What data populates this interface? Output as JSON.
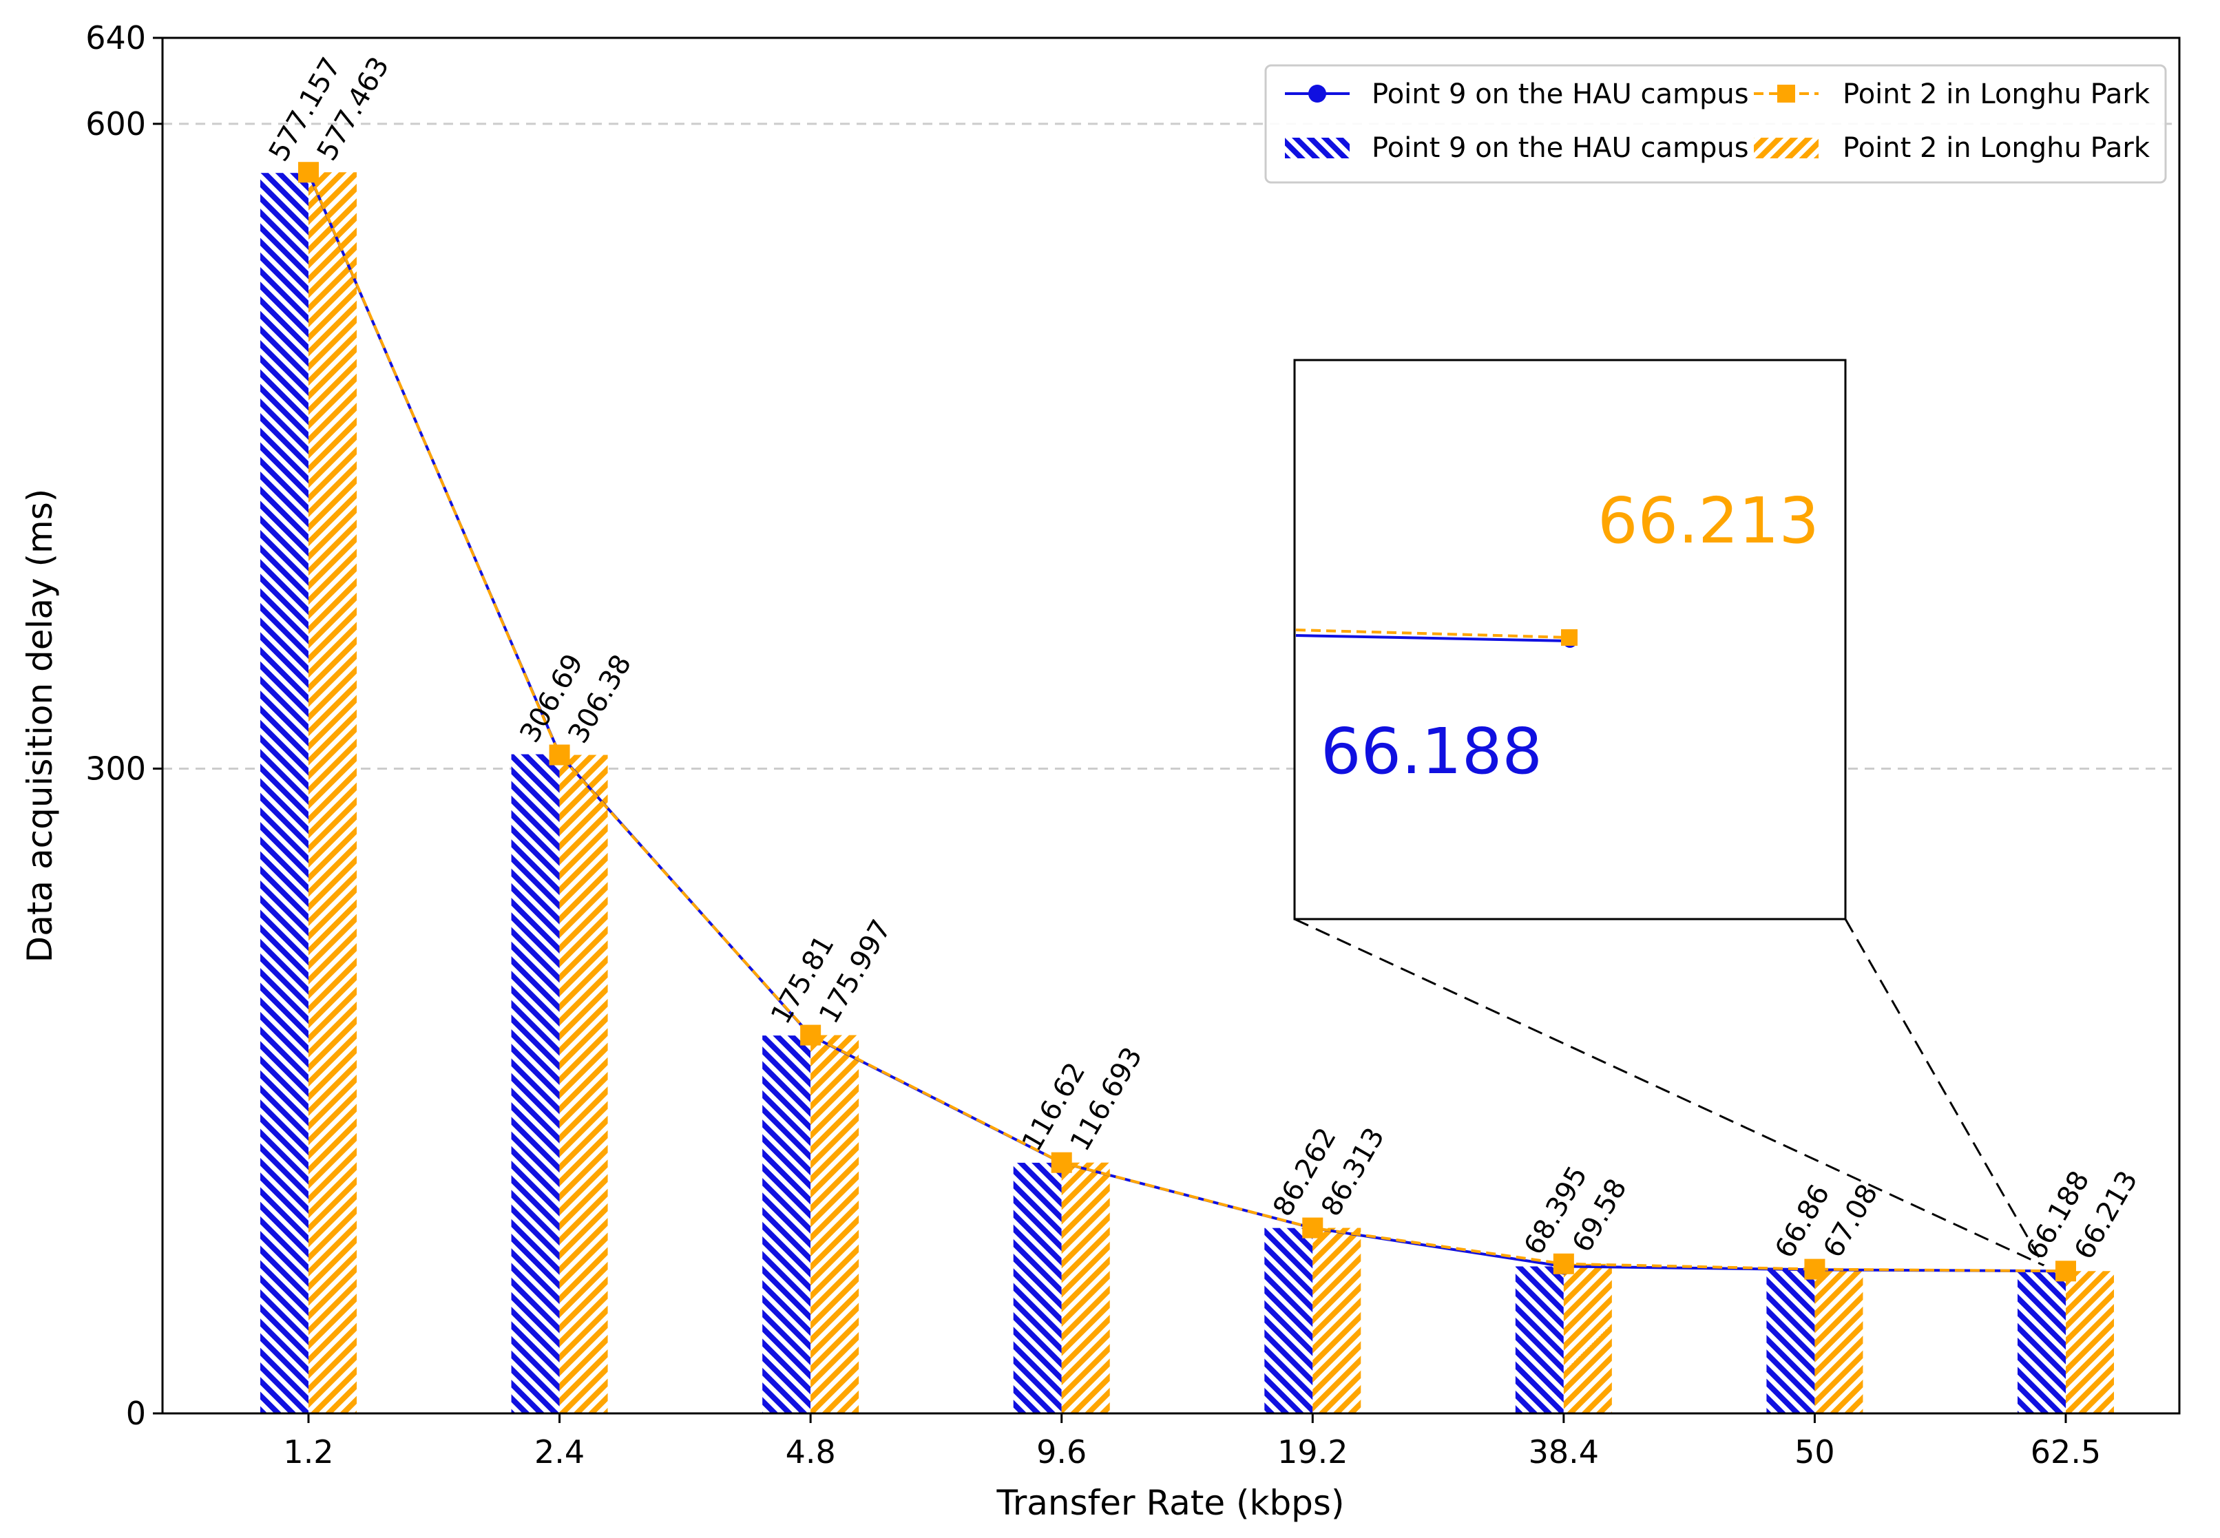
{
  "chart_data": {
    "type": "bar+line",
    "title": "",
    "xlabel": "Transfer Rate (kbps)",
    "ylabel": "Data acquisition delay (ms)",
    "ylim": [
      0,
      640
    ],
    "yticks": [
      0,
      300,
      600,
      640
    ],
    "grid": "horizontal dashed at 300 and 600",
    "categories": [
      "1.2",
      "2.4",
      "4.8",
      "9.6",
      "19.2",
      "38.4",
      "50",
      "62.5"
    ],
    "series": [
      {
        "name": "Point 9 on the HAU campus",
        "values": [
          577.157,
          306.69,
          175.81,
          116.62,
          86.262,
          68.395,
          66.86,
          66.188
        ],
        "labels": [
          "577.157",
          "306.69",
          "175.81",
          "116.62",
          "86.262",
          "68.395",
          "66.86",
          "66.188"
        ],
        "color": "#1010e0",
        "marker": "circle",
        "line_style": "solid",
        "bar_hatch": "backslash"
      },
      {
        "name": "Point 2 in Longhu Park",
        "values": [
          577.463,
          306.38,
          175.997,
          116.693,
          86.313,
          69.58,
          67.08,
          66.213
        ],
        "labels": [
          "577.463",
          "306.38",
          "175.997",
          "116.693",
          "86.313",
          "69.58",
          "67.08",
          "66.213"
        ],
        "color": "#ffa500",
        "marker": "square",
        "line_style": "dashed",
        "bar_hatch": "slash"
      }
    ],
    "legend_position": "top-right",
    "legend": {
      "entries": [
        "Point 9 on the HAU campus",
        "Point 2 in Longhu Park",
        "Point 9 on the HAU campus",
        "Point 2 in Longhu Park"
      ]
    },
    "inset": {
      "zoom_category": "62.5",
      "label_series_1": "66.188",
      "label_series_2": "66.213"
    }
  }
}
